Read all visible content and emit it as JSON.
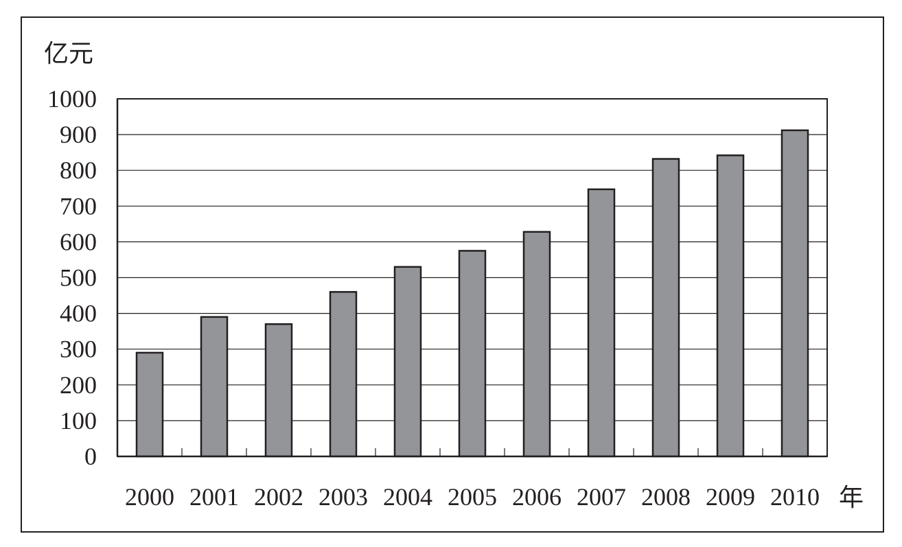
{
  "chart_data": {
    "type": "bar",
    "ylabel": "亿元",
    "xunit": "年",
    "categories": [
      "2000",
      "2001",
      "2002",
      "2003",
      "2004",
      "2005",
      "2006",
      "2007",
      "2008",
      "2009",
      "2010"
    ],
    "values": [
      290,
      390,
      370,
      460,
      530,
      575,
      628,
      747,
      832,
      842,
      912
    ],
    "ylim": [
      0,
      1000
    ],
    "yticks": [
      "0",
      "100",
      "200",
      "300",
      "400",
      "500",
      "600",
      "700",
      "800",
      "900",
      "1000"
    ],
    "grid": true,
    "legend": "none",
    "colors": {
      "bar_fill": "#939598",
      "bar_stroke": "#231f20",
      "axis": "#231f20",
      "grid": "#231f20"
    }
  }
}
